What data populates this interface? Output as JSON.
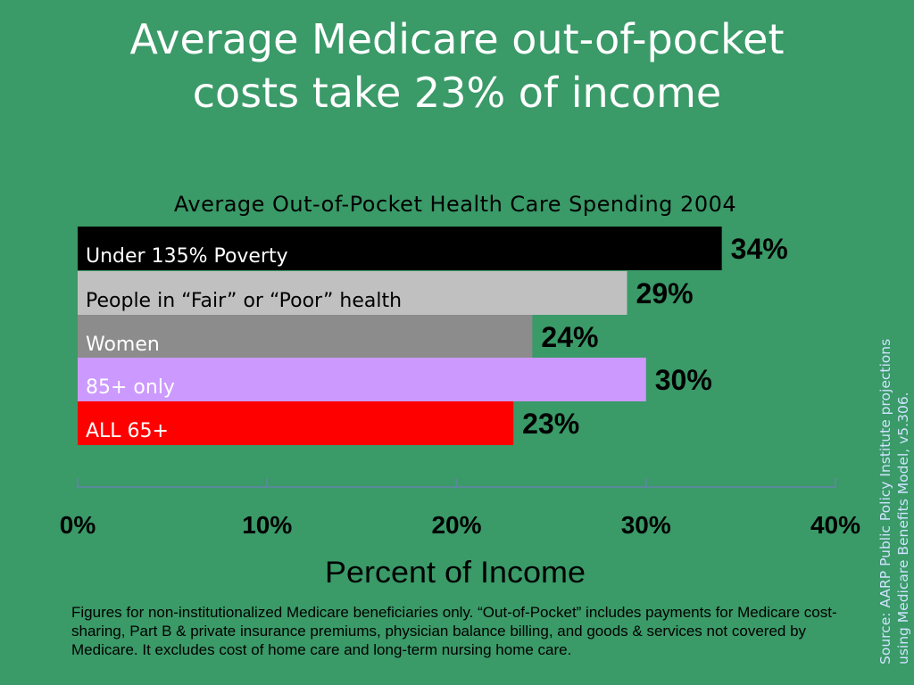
{
  "slide": {
    "title": "Average Medicare out-of-pocket\ncosts take 23% of income",
    "footnote": "Figures for non-institutionalized Medicare beneficiaries only.  “Out-of-Pocket” includes payments for Medicare cost-sharing, Part B & private insurance premiums, physician balance billing, and goods & services not covered by Medicare.  It excludes cost of home care and long-term nursing home care.",
    "source": "Source: AARP Public Policy Institute projections\nusing Medicare Benefits Model, v5.306."
  },
  "chart_data": {
    "type": "bar",
    "orientation": "horizontal",
    "title": "Average Out-of-Pocket Health Care Spending 2004",
    "xlabel": "Percent of Income",
    "ylabel": "",
    "xlim": [
      0,
      40
    ],
    "x_ticks": [
      0,
      10,
      20,
      30,
      40
    ],
    "x_tick_labels": [
      "0%",
      "10%",
      "20%",
      "30%",
      "40%"
    ],
    "categories": [
      "Under 135% Poverty",
      "People in “Fair” or “Poor” health",
      "Women",
      "85+ only",
      "ALL 65+"
    ],
    "values": [
      34,
      29,
      24,
      30,
      23
    ],
    "data_labels": [
      "34%",
      "29%",
      "24%",
      "30%",
      "23%"
    ],
    "bar_colors": [
      "#000000",
      "#c0c0c0",
      "#8c8c8c",
      "#cc99ff",
      "#ff0000"
    ],
    "label_colors": [
      "#ffffff",
      "#000000",
      "#ffffff",
      "#ffffff",
      "#ffffff"
    ],
    "grid": false,
    "legend": "none"
  },
  "colors": {
    "background": "#3a9a68",
    "title_text": "#ffffff",
    "source_text": "#cfe3ff",
    "axis_line": "#5a8a9a"
  }
}
